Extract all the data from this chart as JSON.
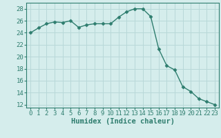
{
  "x": [
    0,
    1,
    2,
    3,
    4,
    5,
    6,
    7,
    8,
    9,
    10,
    11,
    12,
    13,
    14,
    15,
    16,
    17,
    18,
    19,
    20,
    21,
    22,
    23
  ],
  "y": [
    24,
    24.8,
    25.5,
    25.8,
    25.7,
    26.0,
    24.9,
    25.3,
    25.5,
    25.5,
    25.5,
    26.6,
    27.5,
    28.0,
    28.0,
    26.7,
    21.3,
    18.5,
    17.8,
    15.0,
    14.2,
    13.0,
    12.5,
    12.0
  ],
  "line_color": "#2e7d6e",
  "marker": "D",
  "marker_size": 2.5,
  "background_color": "#d5edec",
  "grid_color": "#b8d8d8",
  "xlabel": "Humidex (Indice chaleur)",
  "ylabel": "",
  "xlim": [
    -0.5,
    23.5
  ],
  "ylim": [
    11.5,
    29
  ],
  "yticks": [
    12,
    14,
    16,
    18,
    20,
    22,
    24,
    26,
    28
  ],
  "xticks": [
    0,
    1,
    2,
    3,
    4,
    5,
    6,
    7,
    8,
    9,
    10,
    11,
    12,
    13,
    14,
    15,
    16,
    17,
    18,
    19,
    20,
    21,
    22,
    23
  ],
  "font_size": 6.5,
  "xlabel_fontsize": 7.5,
  "linewidth": 1.0
}
